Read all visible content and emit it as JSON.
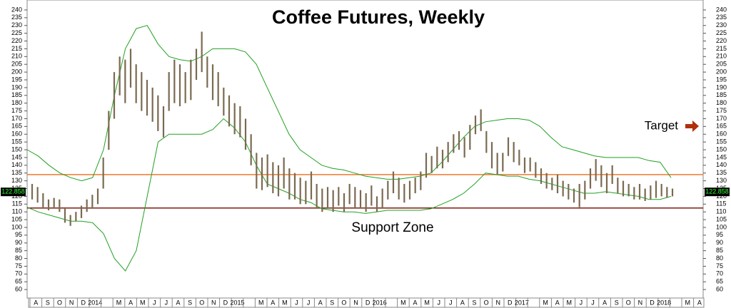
{
  "chart_data": {
    "type": "ohlc",
    "title": "Coffee Futures, Weekly",
    "support_label": "Support Zone",
    "target_label": "Target",
    "last_price": 122.858,
    "ylim": [
      55,
      242
    ],
    "yticks": [
      60,
      65,
      70,
      75,
      80,
      85,
      90,
      95,
      100,
      105,
      110,
      115,
      120,
      125,
      130,
      135,
      140,
      145,
      150,
      155,
      160,
      165,
      170,
      175,
      180,
      185,
      190,
      195,
      200,
      205,
      210,
      215,
      220,
      225,
      230,
      235,
      240
    ],
    "categories": [
      "A",
      "S",
      "O",
      "N",
      "D",
      "2014",
      null,
      "M",
      "A",
      "M",
      "J",
      "J",
      "A",
      "S",
      "O",
      "N",
      "D",
      "2015",
      null,
      "M",
      "A",
      "M",
      "J",
      "J",
      "A",
      "S",
      "O",
      "N",
      "D",
      "2016",
      null,
      "M",
      "A",
      "M",
      "J",
      "J",
      "A",
      "S",
      "O",
      "N",
      "D",
      "2017",
      null,
      "M",
      "A",
      "M",
      "J",
      "J",
      "A",
      "S",
      "O",
      "N",
      "D",
      "2018",
      null,
      "M",
      "A"
    ],
    "bar_color": "#7a6a50",
    "bars": {
      "high": [
        128,
        126,
        122,
        118,
        119,
        118,
        112,
        108,
        110,
        114,
        118,
        121,
        125,
        145,
        175,
        200,
        210,
        208,
        215,
        205,
        200,
        195,
        190,
        185,
        178,
        200,
        208,
        205,
        200,
        208,
        215,
        226,
        210,
        205,
        200,
        190,
        185,
        180,
        178,
        170,
        160,
        148,
        145,
        147,
        142,
        140,
        145,
        138,
        135,
        132,
        130,
        136,
        128,
        125,
        126,
        124,
        126,
        122,
        128,
        126,
        124,
        122,
        127,
        120,
        125,
        130,
        136,
        132,
        128,
        130,
        132,
        136,
        148,
        146,
        152,
        150,
        155,
        160,
        162,
        158,
        166,
        172,
        176,
        162,
        155,
        148,
        148,
        158,
        155,
        150,
        145,
        145,
        142,
        138,
        135,
        132,
        134,
        130,
        128,
        125,
        128,
        130,
        138,
        144,
        140,
        135,
        140,
        132,
        130,
        128,
        126,
        128,
        125,
        127,
        130,
        128,
        126,
        125
      ],
      "low": [
        118,
        116,
        112,
        111,
        112,
        110,
        103,
        101,
        104,
        106,
        110,
        112,
        115,
        125,
        150,
        170,
        185,
        180,
        190,
        180,
        175,
        172,
        168,
        162,
        158,
        175,
        180,
        178,
        180,
        182,
        195,
        200,
        190,
        182,
        178,
        172,
        165,
        160,
        158,
        150,
        140,
        125,
        124,
        126,
        122,
        120,
        125,
        118,
        118,
        115,
        115,
        118,
        112,
        110,
        112,
        110,
        114,
        110,
        115,
        112,
        112,
        110,
        114,
        110,
        112,
        118,
        122,
        118,
        116,
        118,
        122,
        124,
        132,
        135,
        138,
        138,
        142,
        148,
        150,
        145,
        150,
        160,
        162,
        148,
        138,
        134,
        136,
        146,
        142,
        140,
        135,
        136,
        132,
        128,
        125,
        124,
        122,
        120,
        118,
        116,
        113,
        118,
        125,
        130,
        126,
        122,
        128,
        122,
        120,
        120,
        118,
        118,
        117,
        118,
        119,
        120,
        119,
        120
      ]
    },
    "bands": {
      "color": "#22a022",
      "upper": [
        150,
        146,
        140,
        135,
        132,
        130,
        132,
        150,
        185,
        215,
        228,
        230,
        218,
        210,
        208,
        207,
        210,
        215,
        215,
        215,
        213,
        205,
        190,
        175,
        160,
        150,
        145,
        140,
        138,
        137,
        135,
        133,
        132,
        131,
        131,
        132,
        133,
        135,
        142,
        150,
        158,
        165,
        168,
        169,
        170,
        170,
        169,
        165,
        158,
        152,
        150,
        148,
        146,
        145,
        145,
        145,
        145,
        143,
        142,
        132
      ],
      "lower": [
        113,
        110,
        108,
        106,
        104,
        104,
        103,
        96,
        80,
        72,
        85,
        120,
        155,
        160,
        160,
        160,
        160,
        163,
        170,
        164,
        155,
        140,
        128,
        125,
        122,
        118,
        116,
        112,
        111,
        110,
        110,
        109,
        110,
        111,
        111,
        111,
        111,
        112,
        115,
        118,
        122,
        128,
        135,
        134,
        133,
        133,
        131,
        130,
        128,
        126,
        124,
        122,
        122,
        123,
        122,
        121,
        120,
        118,
        118,
        120
      ]
    },
    "levels": [
      {
        "value": 134,
        "color": "#f07828"
      },
      {
        "value": 112.5,
        "color": "#7a1e10"
      }
    ]
  }
}
